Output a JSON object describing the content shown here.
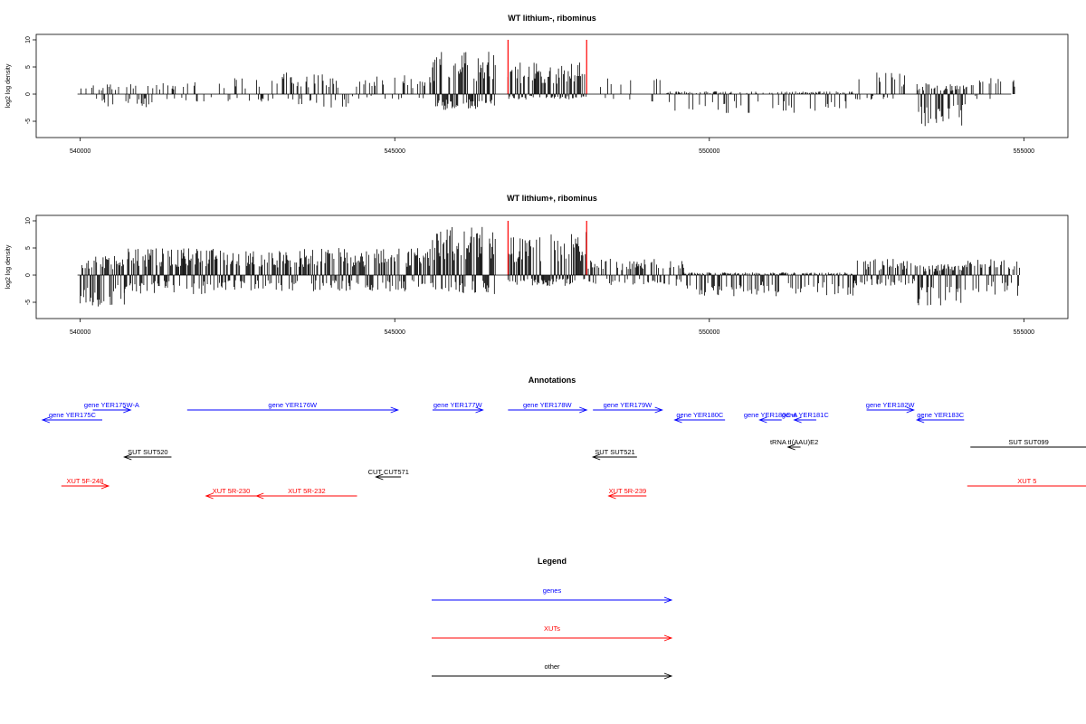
{
  "colors": {
    "genes": "#0000ff",
    "xuts": "#ff0000",
    "other": "#000000",
    "highlight": "#ff0000"
  },
  "chart_data": [
    {
      "type": "bar",
      "title": "WT lithium-, ribominus",
      "ylabel": "log2 log density",
      "xlim": [
        539300,
        555700
      ],
      "ylim": [
        -8,
        11
      ],
      "xticks": [
        540000,
        545000,
        550000,
        555000
      ],
      "yticks": [
        -5,
        0,
        5,
        10
      ],
      "highlight_x": [
        546800,
        548050
      ],
      "coverage_profile": [
        {
          "start": 540000,
          "end": 541200,
          "pos": 2,
          "neg": 2.5,
          "density": 0.35
        },
        {
          "start": 541200,
          "end": 542300,
          "pos": 2.5,
          "neg": 1.5,
          "density": 0.3
        },
        {
          "start": 542300,
          "end": 543200,
          "pos": 3,
          "neg": 1.5,
          "density": 0.35
        },
        {
          "start": 543200,
          "end": 544300,
          "pos": 4,
          "neg": 2.5,
          "density": 0.4
        },
        {
          "start": 544300,
          "end": 545600,
          "pos": 3.5,
          "neg": 1,
          "density": 0.35
        },
        {
          "start": 545600,
          "end": 546600,
          "pos": 8,
          "neg": 3,
          "density": 1
        },
        {
          "start": 546800,
          "end": 548050,
          "pos": 6,
          "neg": 1,
          "density": 0.95
        },
        {
          "start": 548050,
          "end": 549300,
          "pos": 3,
          "neg": 1.5,
          "density": 0.1
        },
        {
          "start": 549300,
          "end": 552300,
          "pos": 0.5,
          "neg": 3.5,
          "density": 0.45
        },
        {
          "start": 552300,
          "end": 553300,
          "pos": 4,
          "neg": 1,
          "density": 0.4
        },
        {
          "start": 553300,
          "end": 554100,
          "pos": 2,
          "neg": 6,
          "density": 0.9
        },
        {
          "start": 554100,
          "end": 554900,
          "pos": 3,
          "neg": 1,
          "density": 0.35
        }
      ]
    },
    {
      "type": "bar",
      "title": "WT lithium+, ribominus",
      "ylabel": "log2 log density",
      "xlim": [
        539300,
        555700
      ],
      "ylim": [
        -8,
        11
      ],
      "xticks": [
        540000,
        545000,
        550000,
        555000
      ],
      "yticks": [
        -5,
        0,
        5,
        10
      ],
      "highlight_x": [
        546800,
        548050
      ],
      "coverage_profile": [
        {
          "start": 540000,
          "end": 540700,
          "pos": 3.5,
          "neg": 6,
          "density": 1
        },
        {
          "start": 540700,
          "end": 542300,
          "pos": 5,
          "neg": 3.5,
          "density": 0.95
        },
        {
          "start": 542300,
          "end": 543500,
          "pos": 4.5,
          "neg": 3,
          "density": 0.9
        },
        {
          "start": 543500,
          "end": 545600,
          "pos": 5,
          "neg": 3,
          "density": 0.9
        },
        {
          "start": 545600,
          "end": 546600,
          "pos": 9,
          "neg": 3.5,
          "density": 1
        },
        {
          "start": 546800,
          "end": 548050,
          "pos": 8,
          "neg": 2,
          "density": 1
        },
        {
          "start": 548050,
          "end": 549600,
          "pos": 3,
          "neg": 2,
          "density": 0.7
        },
        {
          "start": 549600,
          "end": 552300,
          "pos": 0.5,
          "neg": 4,
          "density": 0.85
        },
        {
          "start": 552300,
          "end": 553300,
          "pos": 3,
          "neg": 2,
          "density": 0.8
        },
        {
          "start": 553300,
          "end": 554100,
          "pos": 2,
          "neg": 6.5,
          "density": 1
        },
        {
          "start": 554100,
          "end": 554950,
          "pos": 3,
          "neg": 4,
          "density": 0.6
        }
      ]
    }
  ],
  "annotations": {
    "title": "Annotations",
    "features": [
      {
        "label": "gene YER175C",
        "kind": "genes",
        "strand": "-",
        "start": 539400,
        "end": 540350,
        "row": 1
      },
      {
        "label": "gene YER175W-A",
        "kind": "genes",
        "strand": "+",
        "start": 540200,
        "end": 540800,
        "row": 0
      },
      {
        "label": "gene YER176W",
        "kind": "genes",
        "strand": "+",
        "start": 541700,
        "end": 545050,
        "row": 0
      },
      {
        "label": "gene YER177W",
        "kind": "genes",
        "strand": "+",
        "start": 545600,
        "end": 546400,
        "row": 0
      },
      {
        "label": "gene YER178W",
        "kind": "genes",
        "strand": "+",
        "start": 546800,
        "end": 548050,
        "row": 0
      },
      {
        "label": "gene YER179W",
        "kind": "genes",
        "strand": "+",
        "start": 548150,
        "end": 549250,
        "row": 0
      },
      {
        "label": "gene YER180C",
        "kind": "genes",
        "strand": "-",
        "start": 549450,
        "end": 550250,
        "row": 1
      },
      {
        "label": "gene YER180C-A",
        "kind": "genes",
        "strand": "-",
        "start": 550800,
        "end": 551150,
        "row": 1
      },
      {
        "label": "gene YER181C",
        "kind": "genes",
        "strand": "-",
        "start": 551350,
        "end": 551700,
        "row": 1
      },
      {
        "label": "gene YER182W",
        "kind": "genes",
        "strand": "+",
        "start": 552500,
        "end": 553250,
        "row": 0
      },
      {
        "label": "gene YER183C",
        "kind": "genes",
        "strand": "-",
        "start": 553300,
        "end": 554050,
        "row": 1
      },
      {
        "label": "SUT SUT520",
        "kind": "other",
        "strand": "-",
        "start": 540700,
        "end": 541450,
        "row": 3
      },
      {
        "label": "SUT SUT521",
        "kind": "other",
        "strand": "-",
        "start": 548150,
        "end": 548850,
        "row": 3
      },
      {
        "label": "SUT SUT099",
        "kind": "other",
        "strand": "+",
        "start": 554150,
        "end": 556000,
        "row": 2
      },
      {
        "label": "tRNA tI(AAU)E2",
        "kind": "other",
        "strand": "-",
        "start": 551250,
        "end": 551450,
        "row": 2
      },
      {
        "label": "CUT CUT571",
        "kind": "other",
        "strand": "-",
        "start": 544700,
        "end": 545100,
        "row": 5
      },
      {
        "label": "XUT 5F-248",
        "kind": "xuts",
        "strand": "+",
        "start": 539700,
        "end": 540450,
        "row": 6
      },
      {
        "label": "XUT 5R-230",
        "kind": "xuts",
        "strand": "-",
        "start": 542000,
        "end": 542800,
        "row": 7
      },
      {
        "label": "XUT 5R-232",
        "kind": "xuts",
        "strand": "-",
        "start": 542800,
        "end": 544400,
        "row": 7
      },
      {
        "label": "XUT 5R-239",
        "kind": "xuts",
        "strand": "-",
        "start": 548400,
        "end": 549000,
        "row": 7
      },
      {
        "label": "XUT 5",
        "kind": "xuts",
        "strand": "+",
        "start": 554100,
        "end": 556000,
        "row": 6
      }
    ]
  },
  "legend": {
    "title": "Legend",
    "items": [
      {
        "label": "genes",
        "kind": "genes"
      },
      {
        "label": "XUTs",
        "kind": "xuts"
      },
      {
        "label": "other",
        "kind": "other"
      }
    ]
  }
}
